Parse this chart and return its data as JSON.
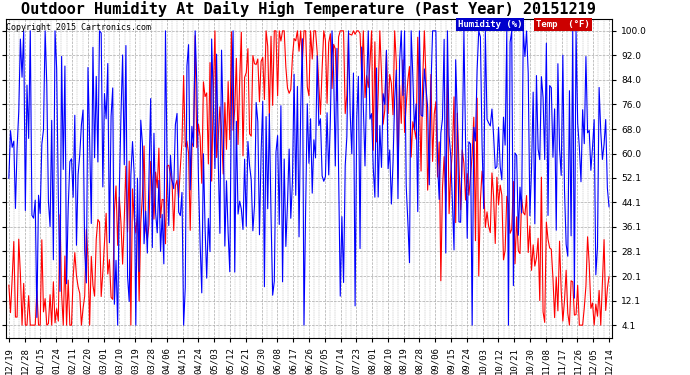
{
  "title": "Outdoor Humidity At Daily High Temperature (Past Year) 20151219",
  "copyright": "Copyright 2015 Cartronics.com",
  "legend_humidity_label": "Humidity (%)",
  "legend_temp_label": "Temp  (°F)",
  "legend_humidity_bg": "#0000cc",
  "legend_temp_bg": "#cc0000",
  "humidity_color": "#0000ff",
  "temp_color": "#ff0000",
  "background_color": "#ffffff",
  "plot_bg_color": "#ffffff",
  "grid_color": "#aaaaaa",
  "yticks": [
    4.1,
    12.1,
    20.1,
    28.1,
    36.1,
    44.1,
    52.1,
    60.0,
    68.0,
    76.0,
    84.0,
    92.0,
    100.0
  ],
  "ylim": [
    0,
    104
  ],
  "title_fontsize": 11,
  "copyright_fontsize": 6,
  "tick_fontsize": 6.5,
  "x_dates": [
    "12/19",
    "12/28",
    "01/15",
    "01/24",
    "02/11",
    "02/20",
    "03/01",
    "03/10",
    "03/19",
    "03/28",
    "04/06",
    "04/15",
    "04/24",
    "05/03",
    "05/12",
    "05/21",
    "05/30",
    "06/08",
    "06/17",
    "06/26",
    "07/05",
    "07/14",
    "07/23",
    "08/01",
    "08/10",
    "08/19",
    "08/28",
    "09/06",
    "09/15",
    "09/24",
    "10/03",
    "10/12",
    "10/21",
    "10/30",
    "11/08",
    "11/17",
    "11/26",
    "12/05",
    "12/14"
  ],
  "n_days": 365
}
